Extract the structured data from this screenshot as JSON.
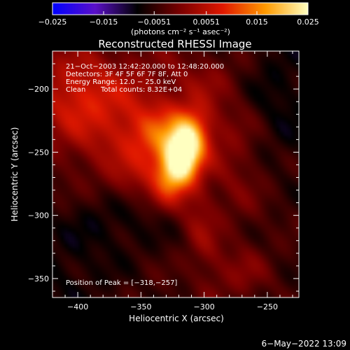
{
  "chart_data": {
    "type": "heatmap",
    "title": "Reconstructed RHESSI Image",
    "xlabel": "Heliocentric X (arcsec)",
    "ylabel": "Heliocentric Y (arcsec)",
    "xlim": [
      -420,
      -225
    ],
    "ylim": [
      -365,
      -170
    ],
    "x_ticks": [
      -400,
      -350,
      -300,
      -250
    ],
    "y_ticks": [
      -200,
      -250,
      -300,
      -350
    ],
    "x_tick_labels": [
      "−400",
      "−350",
      "−300",
      "−250"
    ],
    "y_tick_labels": [
      "−200",
      "−250",
      "−300",
      "−350"
    ],
    "colorbar": {
      "min": -0.025,
      "max": 0.025,
      "ticks": [
        -0.025,
        -0.015,
        -0.0051,
        0.0051,
        0.015,
        0.025
      ],
      "tick_labels": [
        "−0.025",
        "−0.015",
        "−0.0051",
        "0.0051",
        "0.015",
        "0.025"
      ],
      "unit_label": "(photons cm⁻² s⁻¹ asec⁻²)",
      "colors": [
        "#0000ff",
        "#5a10c8",
        "#000000",
        "#7a0000",
        "#e01800",
        "#ff9a00",
        "#ffffc0"
      ]
    },
    "annotations": {
      "time_range": "21−Oct−2003 12:42:20.000 to 12:48:20.000",
      "detectors": "Detectors: 3F 4F 5F 6F 7F 8F, Att 0",
      "energy": "Energy Range: 12.0 − 25.0 keV",
      "method": "Clean",
      "total_counts": "Total counts: 8.32E+04",
      "peak": "Position of Peak = [−318,−257]"
    },
    "peak": {
      "x": -318,
      "y": -257,
      "value": 0.025
    },
    "emission_sources": [
      {
        "x": -318,
        "y": -254,
        "sx": 10,
        "sy": 22,
        "amp": 0.0285,
        "rot": -20
      },
      {
        "x": -330,
        "y": -238,
        "sx": 20,
        "sy": 16,
        "amp": 0.011,
        "rot": 0
      },
      {
        "x": -372,
        "y": -220,
        "sx": 40,
        "sy": 34,
        "amp": 0.0095,
        "rot": 0
      },
      {
        "x": -405,
        "y": -200,
        "sx": 22,
        "sy": 22,
        "amp": 0.006,
        "rot": 0
      },
      {
        "x": -350,
        "y": -270,
        "sx": 22,
        "sy": 14,
        "amp": 0.0055,
        "rot": 30
      },
      {
        "x": -305,
        "y": -300,
        "sx": 10,
        "sy": 45,
        "amp": 0.0055,
        "rot": 10
      },
      {
        "x": -275,
        "y": -250,
        "sx": 18,
        "sy": 40,
        "amp": 0.005,
        "rot": 0
      },
      {
        "x": -270,
        "y": -345,
        "sx": 15,
        "sy": 15,
        "amp": 0.004,
        "rot": 0
      },
      {
        "x": -300,
        "y": -190,
        "sx": 20,
        "sy": 14,
        "amp": 0.003,
        "rot": 0
      }
    ],
    "background": {
      "base": -0.0045,
      "darker_regions": [
        {
          "x": -370,
          "y": -300,
          "sx": 30,
          "sy": 20,
          "amp": -0.004
        },
        {
          "x": -245,
          "y": -210,
          "sx": 25,
          "sy": 40,
          "amp": -0.004
        },
        {
          "x": -410,
          "y": -350,
          "sx": 25,
          "sy": 25,
          "amp": -0.003
        }
      ]
    }
  },
  "footer": {
    "date": "6−May−2022 13:09"
  }
}
